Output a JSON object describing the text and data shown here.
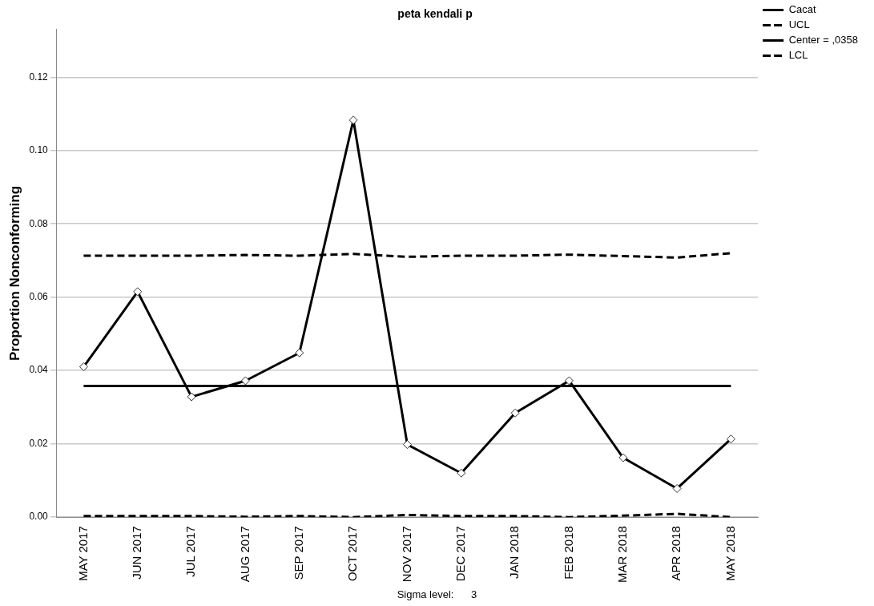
{
  "chart_data": {
    "type": "line",
    "title": "peta kendali p",
    "ylabel": "Proportion Nonconforming",
    "categories": [
      "MAY 2017",
      "JUN 2017",
      "JUL 2017",
      "AUG 2017",
      "SEP 2017",
      "OCT 2017",
      "NOV 2017",
      "DEC 2017",
      "JAN 2018",
      "FEB 2018",
      "MAR 2018",
      "APR 2018",
      "MAY 2018"
    ],
    "series": [
      {
        "name": "Cacat",
        "color": "#000000",
        "marker": "diamond",
        "line_style": "solid",
        "values": [
          0.041,
          0.0615,
          0.0328,
          0.0372,
          0.0448,
          0.1083,
          0.0198,
          0.012,
          0.0284,
          0.0372,
          0.0162,
          0.0078,
          0.0213
        ]
      },
      {
        "name": "UCL",
        "color": "#000000",
        "marker": "none",
        "line_style": "dashed",
        "values": [
          0.0713,
          0.0713,
          0.0713,
          0.0715,
          0.0713,
          0.0718,
          0.071,
          0.0713,
          0.0713,
          0.0716,
          0.0712,
          0.0708,
          0.072
        ]
      },
      {
        "name": "Center = ,0358",
        "color": "#000000",
        "marker": "none",
        "line_style": "solid",
        "values": [
          0.0358,
          0.0358,
          0.0358,
          0.0358,
          0.0358,
          0.0358,
          0.0358,
          0.0358,
          0.0358,
          0.0358,
          0.0358,
          0.0358,
          0.0358
        ]
      },
      {
        "name": "LCL",
        "color": "#000000",
        "marker": "none",
        "line_style": "dashed",
        "values": [
          0.0003,
          0.0003,
          0.0003,
          0.0001,
          0.0003,
          0,
          0.0006,
          0.0003,
          0.0003,
          0,
          0.0004,
          0.0009,
          0
        ]
      }
    ],
    "ylim": [
      0,
      0.133
    ],
    "yticks": [
      {
        "value": 0,
        "label": "0.00"
      },
      {
        "value": 0.02,
        "label": "0.02"
      },
      {
        "value": 0.04,
        "label": "0.04"
      },
      {
        "value": 0.06,
        "label": "0.06"
      },
      {
        "value": 0.08,
        "label": "0.08"
      },
      {
        "value": 0.1,
        "label": "0.10"
      },
      {
        "value": 0.12,
        "label": "0.12"
      }
    ],
    "grid": "y",
    "legend": "top right",
    "annotations": [
      "Sigma level:      3"
    ]
  }
}
